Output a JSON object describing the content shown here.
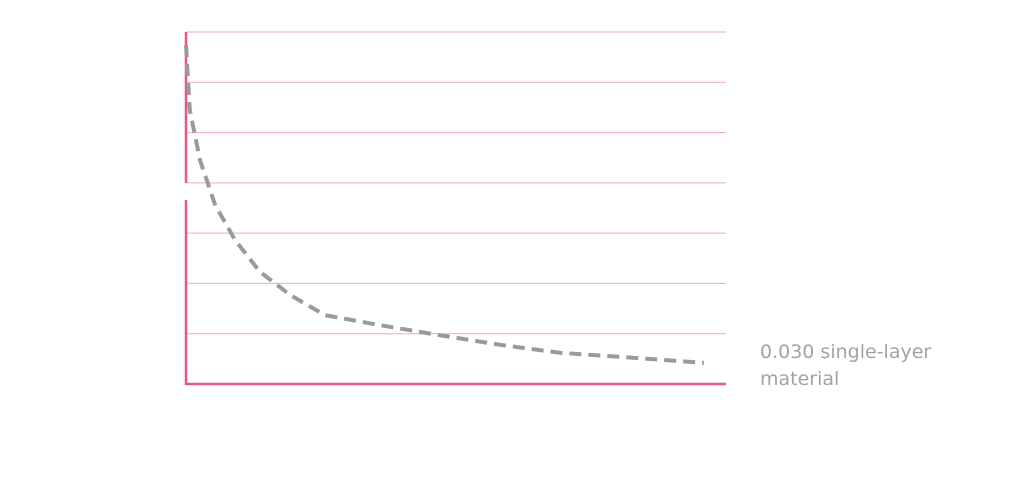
{
  "chart_data": {
    "type": "line",
    "x": [
      0,
      0.07,
      0.26,
      0.54,
      0.91,
      1.37,
      1.93,
      2.57,
      3.59,
      4.7,
      5.81,
      6.93,
      8.04,
      9.59
    ],
    "series": [
      {
        "color": "#9a9a9a",
        "values": [
          6.74,
          5.45,
          4.45,
          3.56,
          2.86,
          2.23,
          1.77,
          1.37,
          1.17,
          0.97,
          0.78,
          0.62,
          0.54,
          0.42
        ]
      }
    ],
    "xlim": [
      0,
      10
    ],
    "ylim": [
      0,
      7
    ],
    "yticks": [
      1,
      2,
      3,
      4,
      5,
      6,
      7
    ],
    "grid": true,
    "grid_color": "#f2a9bf",
    "axis_color": "#e8587c",
    "annotation": [
      "0.030 single-layer",
      "material"
    ]
  }
}
